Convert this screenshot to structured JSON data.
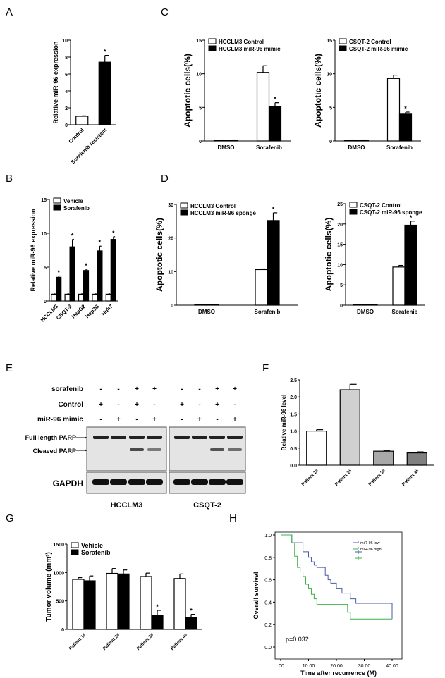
{
  "panel_letters": {
    "A": "A",
    "B": "B",
    "C": "C",
    "D": "D",
    "E": "E",
    "F": "F",
    "G": "G",
    "H": "H"
  },
  "chart_data": [
    {
      "id": "A",
      "type": "bar",
      "ylabel": "Relative miR-96 expression",
      "ylim": [
        0,
        10
      ],
      "yticks": [
        "0",
        "2",
        "4",
        "6",
        "8",
        "10"
      ],
      "categories": [
        "Control",
        "Sorafenib resistant"
      ],
      "series": [
        {
          "values": [
            1.0,
            7.4
          ],
          "errors": [
            0.05,
            0.8
          ],
          "fills": [
            "#ffffff",
            "#000000"
          ],
          "stars": [
            false,
            true
          ]
        }
      ],
      "star": "*"
    },
    {
      "id": "C1",
      "type": "bar",
      "ylabel": "Apoptotic cells(%)",
      "ylim": [
        0,
        15
      ],
      "yticks": [
        "0",
        "5",
        "10",
        "15"
      ],
      "categories": [
        "DMSO",
        "Sorafenib"
      ],
      "series": [
        {
          "name": "HCCLM3 Control",
          "color": "#ffffff",
          "values": [
            0.1,
            10.2
          ],
          "errors": [
            0.05,
            1.0
          ],
          "stars": [
            false,
            false
          ]
        },
        {
          "name": "HCCLM3 miR-96 mimic",
          "color": "#000000",
          "values": [
            0.1,
            5.1
          ],
          "errors": [
            0.05,
            0.6
          ],
          "stars": [
            false,
            true
          ]
        }
      ],
      "legend": "top-left",
      "star": "*"
    },
    {
      "id": "C2",
      "type": "bar",
      "ylabel": "Apoptotic cells(%)",
      "ylim": [
        0,
        15
      ],
      "yticks": [
        "0",
        "5",
        "10",
        "15"
      ],
      "categories": [
        "DMSO",
        "Sorafenib"
      ],
      "series": [
        {
          "name": "CSQT-2 Control",
          "color": "#ffffff",
          "values": [
            0.1,
            9.3
          ],
          "errors": [
            0.05,
            0.5
          ],
          "stars": [
            false,
            false
          ]
        },
        {
          "name": "CSQT-2 miR-96 mimic",
          "color": "#000000",
          "values": [
            0.1,
            4.0
          ],
          "errors": [
            0.05,
            0.3
          ],
          "stars": [
            false,
            true
          ]
        }
      ],
      "legend": "top-left",
      "star": "*"
    },
    {
      "id": "B",
      "type": "bar",
      "ylabel": "Relative miR-96 expression",
      "ylim": [
        0,
        15
      ],
      "yticks": [
        "0",
        "5",
        "10",
        "15"
      ],
      "categories": [
        "HCCLM3",
        "CSQT-2",
        "HepG2",
        "Hep3B",
        "Huh7"
      ],
      "series": [
        {
          "name": "Vehicle",
          "color": "#ffffff",
          "values": [
            1,
            1,
            1,
            1,
            1
          ],
          "errors": [
            0.05,
            0.05,
            0.05,
            0.05,
            0.05
          ],
          "stars": [
            false,
            false,
            false,
            false,
            false
          ]
        },
        {
          "name": "Sorafenib",
          "color": "#000000",
          "values": [
            3.5,
            8.0,
            4.5,
            7.4,
            9.1
          ],
          "errors": [
            0.2,
            1.1,
            0.2,
            0.7,
            0.4
          ],
          "stars": [
            true,
            true,
            true,
            true,
            true
          ]
        }
      ],
      "legend": "top-left",
      "star": "*"
    },
    {
      "id": "D1",
      "type": "bar",
      "ylabel": "Apoptotic cells(%)",
      "ylim": [
        0,
        30
      ],
      "yticks": [
        "0",
        "10",
        "20",
        "30"
      ],
      "categories": [
        "DMSO",
        "Sorafenib"
      ],
      "series": [
        {
          "name": "HCCLM3 Control",
          "color": "#ffffff",
          "values": [
            0.1,
            10.6
          ],
          "errors": [
            0.05,
            0.2
          ],
          "stars": [
            false,
            false
          ]
        },
        {
          "name": "HCCLM3 miR-96 sponge",
          "color": "#000000",
          "values": [
            0.1,
            25.2
          ],
          "errors": [
            0.05,
            2.3
          ],
          "stars": [
            false,
            true
          ]
        }
      ],
      "legend": "top-left",
      "star": "*"
    },
    {
      "id": "D2",
      "type": "bar",
      "ylabel": "Apoptotic cells(%)",
      "ylim": [
        0,
        25
      ],
      "yticks": [
        "0",
        "5",
        "10",
        "15",
        "20",
        "25"
      ],
      "categories": [
        "DMSO",
        "Sorafenib"
      ],
      "series": [
        {
          "name": "CSQT-2 Control",
          "color": "#ffffff",
          "values": [
            0.1,
            9.4
          ],
          "errors": [
            0.05,
            0.4
          ],
          "stars": [
            false,
            false
          ]
        },
        {
          "name": "CSQT-2 miR-96 sponge",
          "color": "#000000",
          "values": [
            0.1,
            19.7
          ],
          "errors": [
            0.05,
            1.0
          ],
          "stars": [
            false,
            true
          ]
        }
      ],
      "legend": "top-left",
      "star": "*"
    },
    {
      "id": "F",
      "type": "bar",
      "ylabel": "Relative miR-96 level",
      "ylim": [
        0,
        2.5
      ],
      "yticks": [
        "0.0",
        "0.5",
        "1.0",
        "1.5",
        "2.0",
        "2.5"
      ],
      "categories": [
        "Patient 1#",
        "Patient 2#",
        "Patient 3#",
        "Patient 4#"
      ],
      "series": [
        {
          "values": [
            1.0,
            2.21,
            0.41,
            0.36
          ],
          "errors": [
            0.04,
            0.16,
            0.01,
            0.03
          ],
          "fills": [
            "#ffffff",
            "#d0d0d0",
            "#a8a8a8",
            "#808080"
          ],
          "stars": [
            false,
            false,
            false,
            false
          ]
        }
      ],
      "star": "*"
    },
    {
      "id": "G",
      "type": "bar",
      "ylabel": "Tumor volume  (mm³)",
      "ylim": [
        0,
        1500
      ],
      "yticks": [
        "0",
        "500",
        "1000",
        "1500"
      ],
      "categories": [
        "Patient 1#",
        "Patient 2#",
        "Patient 3#",
        "Patient 4#"
      ],
      "series": [
        {
          "name": "Vehicle",
          "color": "#ffffff",
          "values": [
            880,
            985,
            930,
            895
          ],
          "errors": [
            30,
            85,
            60,
            80
          ],
          "stars": [
            false,
            false,
            false,
            false
          ]
        },
        {
          "name": "Sorafenib",
          "color": "#000000",
          "values": [
            855,
            975,
            250,
            205
          ],
          "errors": [
            85,
            70,
            85,
            60
          ],
          "stars": [
            false,
            false,
            true,
            true
          ]
        }
      ],
      "legend": "top-left",
      "star": "*"
    },
    {
      "id": "H",
      "type": "line",
      "xlabel": "Time after recurrence (M)",
      "ylabel": "Overall survival",
      "xlim": [
        0,
        40
      ],
      "ylim": [
        0,
        1
      ],
      "xticks": [
        ".00",
        "10.00",
        "20.00",
        "30.00",
        "40.00"
      ],
      "yticks": [
        "0.0",
        "0.2",
        "0.4",
        "0.6",
        "0.8",
        "1.0"
      ],
      "annotation": "p=0.032",
      "legend": "top-right",
      "series": [
        {
          "name": "miR-96 low",
          "color": "#4a5aa8",
          "steps": [
            [
              0,
              1.0
            ],
            [
              4,
              0.93
            ],
            [
              8,
              0.85
            ],
            [
              10,
              0.8
            ],
            [
              11,
              0.76
            ],
            [
              12,
              0.73
            ],
            [
              13,
              0.71
            ],
            [
              16,
              0.64
            ],
            [
              17,
              0.6
            ],
            [
              18,
              0.57
            ],
            [
              20,
              0.52
            ],
            [
              22,
              0.48
            ],
            [
              25,
              0.43
            ],
            [
              27,
              0.39
            ],
            [
              40,
              0.25
            ]
          ]
        },
        {
          "name": "miR-96 high",
          "color": "#3cb048",
          "steps": [
            [
              0,
              1.0
            ],
            [
              4,
              0.93
            ],
            [
              5,
              0.81
            ],
            [
              6,
              0.71
            ],
            [
              7,
              0.67
            ],
            [
              8,
              0.63
            ],
            [
              9,
              0.56
            ],
            [
              10,
              0.52
            ],
            [
              11,
              0.47
            ],
            [
              12,
              0.43
            ],
            [
              13,
              0.38
            ],
            [
              24,
              0.31
            ],
            [
              25,
              0.25
            ],
            [
              40,
              0.25
            ]
          ]
        }
      ]
    }
  ],
  "western_blot": {
    "rows": [
      "sorafenib",
      "Control",
      "miR-96 mimic"
    ],
    "signs": [
      [
        "-",
        "-",
        "+",
        "+",
        "-",
        "-",
        "+",
        "+"
      ],
      [
        "+",
        "-",
        "+",
        "-",
        "+",
        "-",
        "+",
        "-"
      ],
      [
        "-",
        "+",
        "-",
        "+",
        "-",
        "+",
        "-",
        "+"
      ]
    ],
    "band_labels": [
      "Full length PARP",
      "Cleaved PARP"
    ],
    "loading_label": "GAPDH",
    "cell_lines": [
      "HCCLM3",
      "CSQT-2"
    ],
    "cleaved_intensity": [
      0,
      0,
      0.8,
      0.55,
      0,
      0,
      0.75,
      0.6
    ]
  }
}
